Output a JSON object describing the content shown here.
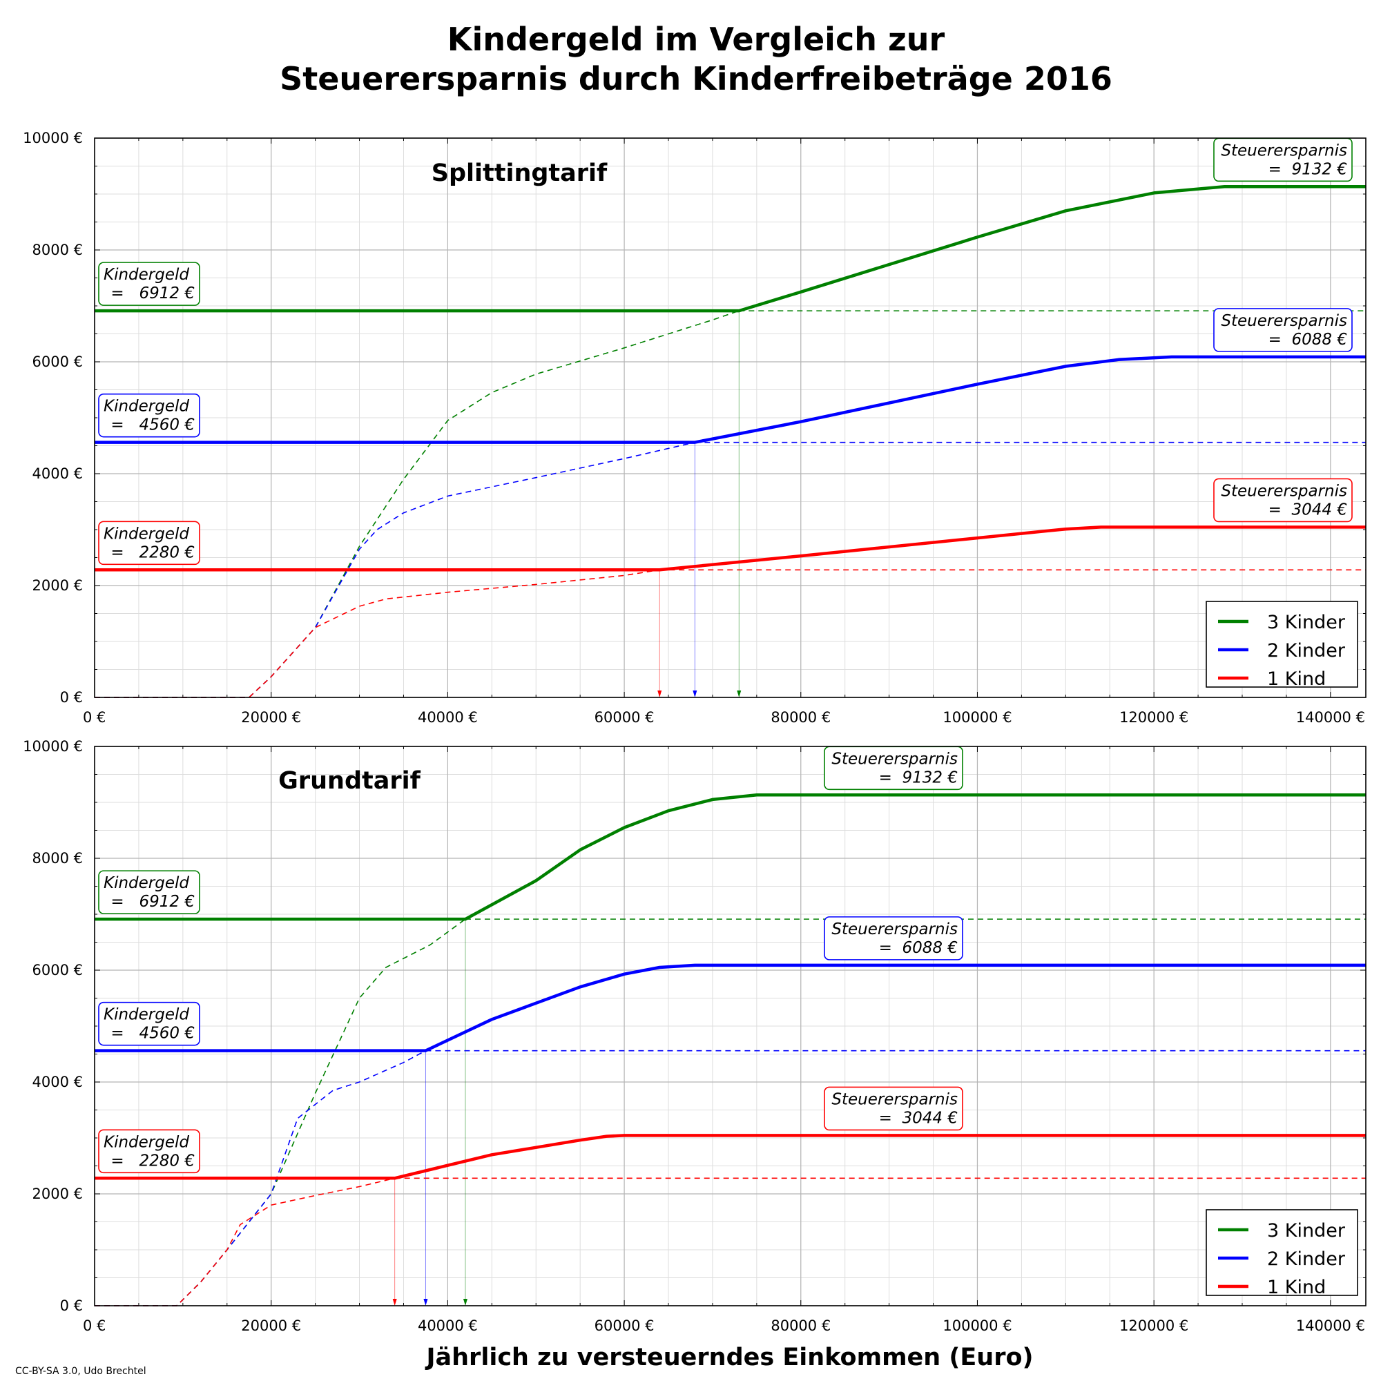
{
  "figure": {
    "title_line1": "Kindergeld im Vergleich zur",
    "title_line2": "Steuerersparnis durch Kinderfreibeträge 2016",
    "xlabel": "Jährlich zu versteuerndes Einkommen (Euro)",
    "credit": "CC-BY-SA 3.0, Udo Brechtel"
  },
  "chart_data": [
    {
      "type": "line",
      "title": "Splittingtarif",
      "xlim": [
        0,
        144000
      ],
      "ylim": [
        0,
        10000
      ],
      "xticks": [
        0,
        20000,
        40000,
        60000,
        80000,
        100000,
        120000,
        140000
      ],
      "yticks": [
        0,
        2000,
        4000,
        6000,
        8000,
        10000
      ],
      "xtick_labels": [
        "0 €",
        "20000 €",
        "40000 €",
        "60000 €",
        "80000 €",
        "100000 €",
        "120000 €",
        "140000 €"
      ],
      "ytick_labels": [
        "0 €",
        "2000 €",
        "4000 €",
        "6000 €",
        "8000 €",
        "10000 €"
      ],
      "grid": true,
      "legend_position": "bottom-right",
      "series": [
        {
          "name": "3 Kinder",
          "color": "#008000",
          "kindergeld": 6912,
          "steuerersparnis_max": 9132,
          "crossover_x": 73000,
          "net_benefit": [
            [
              0,
              6912
            ],
            [
              73000,
              6912
            ],
            [
              80000,
              7250
            ],
            [
              100000,
              8230
            ],
            [
              110000,
              8700
            ],
            [
              120000,
              9020
            ],
            [
              128000,
              9132
            ],
            [
              144000,
              9132
            ]
          ],
          "tax_saving": [
            [
              0,
              0
            ],
            [
              17500,
              0
            ],
            [
              20000,
              370
            ],
            [
              25000,
              1250
            ],
            [
              30000,
              2700
            ],
            [
              35000,
              3900
            ],
            [
              40000,
              4950
            ],
            [
              45000,
              5450
            ],
            [
              50000,
              5780
            ],
            [
              60000,
              6250
            ],
            [
              70000,
              6750
            ],
            [
              73000,
              6912
            ]
          ]
        },
        {
          "name": "2 Kinder",
          "color": "#0000ff",
          "kindergeld": 4560,
          "steuerersparnis_max": 6088,
          "crossover_x": 68000,
          "net_benefit": [
            [
              0,
              4560
            ],
            [
              68000,
              4560
            ],
            [
              80000,
              4930
            ],
            [
              100000,
              5600
            ],
            [
              110000,
              5920
            ],
            [
              116000,
              6040
            ],
            [
              122000,
              6088
            ],
            [
              144000,
              6088
            ]
          ],
          "tax_saving": [
            [
              0,
              0
            ],
            [
              17500,
              0
            ],
            [
              20000,
              370
            ],
            [
              25000,
              1250
            ],
            [
              30000,
              2650
            ],
            [
              32000,
              3000
            ],
            [
              35000,
              3300
            ],
            [
              40000,
              3600
            ],
            [
              50000,
              3930
            ],
            [
              60000,
              4270
            ],
            [
              68000,
              4560
            ]
          ]
        },
        {
          "name": "1 Kind",
          "color": "#ff0000",
          "kindergeld": 2280,
          "steuerersparnis_max": 3044,
          "crossover_x": 64000,
          "net_benefit": [
            [
              0,
              2280
            ],
            [
              64000,
              2280
            ],
            [
              80000,
              2530
            ],
            [
              100000,
              2850
            ],
            [
              110000,
              3010
            ],
            [
              114000,
              3044
            ],
            [
              144000,
              3044
            ]
          ],
          "tax_saving": [
            [
              0,
              0
            ],
            [
              17500,
              0
            ],
            [
              20000,
              370
            ],
            [
              25000,
              1250
            ],
            [
              30000,
              1630
            ],
            [
              33000,
              1760
            ],
            [
              40000,
              1880
            ],
            [
              50000,
              2020
            ],
            [
              60000,
              2180
            ],
            [
              64000,
              2280
            ]
          ]
        }
      ],
      "annotations": {
        "kindergeld_label": "Kindergeld",
        "steuerersparnis_label": "Steuerersparnis",
        "values": [
          "=   6912 €",
          "=   4560 €",
          "=   2280 €",
          "=  9132 €",
          "=  6088 €",
          "=  3044 €"
        ]
      },
      "legend": [
        "3 Kinder",
        "2 Kinder",
        "1 Kind"
      ]
    },
    {
      "type": "line",
      "title": "Grundtarif",
      "xlim": [
        0,
        144000
      ],
      "ylim": [
        0,
        10000
      ],
      "xticks": [
        0,
        20000,
        40000,
        60000,
        80000,
        100000,
        120000,
        140000
      ],
      "yticks": [
        0,
        2000,
        4000,
        6000,
        8000,
        10000
      ],
      "xtick_labels": [
        "0 €",
        "20000 €",
        "40000 €",
        "60000 €",
        "80000 €",
        "100000 €",
        "120000 €",
        "140000 €"
      ],
      "ytick_labels": [
        "0 €",
        "2000 €",
        "4000 €",
        "6000 €",
        "8000 €",
        "10000 €"
      ],
      "grid": true,
      "legend_position": "bottom-right",
      "series": [
        {
          "name": "3 Kinder",
          "color": "#008000",
          "kindergeld": 6912,
          "steuerersparnis_max": 9132,
          "crossover_x": 42000,
          "net_benefit": [
            [
              0,
              6912
            ],
            [
              42000,
              6912
            ],
            [
              50000,
              7600
            ],
            [
              55000,
              8150
            ],
            [
              60000,
              8550
            ],
            [
              65000,
              8850
            ],
            [
              70000,
              9050
            ],
            [
              75000,
              9132
            ],
            [
              144000,
              9132
            ]
          ],
          "tax_saving": [
            [
              0,
              0
            ],
            [
              9300,
              0
            ],
            [
              12000,
              420
            ],
            [
              15000,
              1000
            ],
            [
              20000,
              2000
            ],
            [
              25000,
              3800
            ],
            [
              30000,
              5500
            ],
            [
              33000,
              6050
            ],
            [
              38000,
              6450
            ],
            [
              42000,
              6912
            ]
          ]
        },
        {
          "name": "2 Kinder",
          "color": "#0000ff",
          "kindergeld": 4560,
          "steuerersparnis_max": 6088,
          "crossover_x": 37500,
          "net_benefit": [
            [
              0,
              4560
            ],
            [
              37500,
              4560
            ],
            [
              45000,
              5120
            ],
            [
              55000,
              5700
            ],
            [
              60000,
              5930
            ],
            [
              64000,
              6050
            ],
            [
              68000,
              6088
            ],
            [
              144000,
              6088
            ]
          ],
          "tax_saving": [
            [
              0,
              0
            ],
            [
              9300,
              0
            ],
            [
              12000,
              420
            ],
            [
              15000,
              1000
            ],
            [
              20000,
              2000
            ],
            [
              23000,
              3350
            ],
            [
              27000,
              3850
            ],
            [
              30000,
              4000
            ],
            [
              35000,
              4350
            ],
            [
              37500,
              4560
            ]
          ]
        },
        {
          "name": "1 Kind",
          "color": "#ff0000",
          "kindergeld": 2280,
          "steuerersparnis_max": 3044,
          "crossover_x": 34000,
          "net_benefit": [
            [
              0,
              2280
            ],
            [
              34000,
              2280
            ],
            [
              45000,
              2700
            ],
            [
              55000,
              2960
            ],
            [
              58000,
              3030
            ],
            [
              60000,
              3044
            ],
            [
              144000,
              3044
            ]
          ],
          "tax_saving": [
            [
              0,
              0
            ],
            [
              9300,
              0
            ],
            [
              12000,
              420
            ],
            [
              15000,
              1000
            ],
            [
              16500,
              1450
            ],
            [
              20000,
              1800
            ],
            [
              25000,
              1970
            ],
            [
              30000,
              2130
            ],
            [
              34000,
              2280
            ]
          ]
        }
      ],
      "annotations": {
        "kindergeld_label": "Kindergeld",
        "steuerersparnis_label": "Steuerersparnis",
        "values": [
          "=   6912 €",
          "=   4560 €",
          "=   2280 €",
          "=  9132 €",
          "=  6088 €",
          "=  3044 €"
        ]
      },
      "legend": [
        "3 Kinder",
        "2 Kinder",
        "1 Kind"
      ]
    }
  ]
}
